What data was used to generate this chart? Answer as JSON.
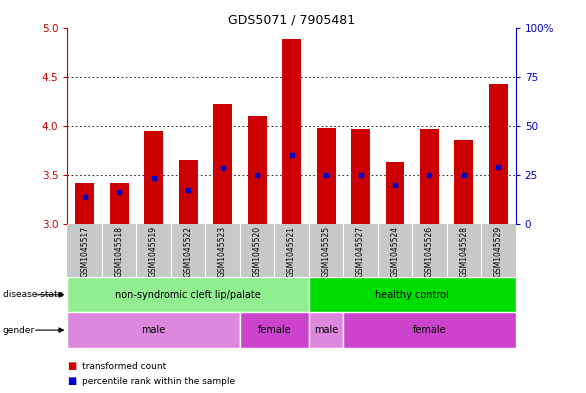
{
  "title": "GDS5071 / 7905481",
  "samples": [
    "GSM1045517",
    "GSM1045518",
    "GSM1045519",
    "GSM1045522",
    "GSM1045523",
    "GSM1045520",
    "GSM1045521",
    "GSM1045525",
    "GSM1045527",
    "GSM1045524",
    "GSM1045526",
    "GSM1045528",
    "GSM1045529"
  ],
  "bar_heights": [
    3.42,
    3.42,
    3.95,
    3.65,
    4.22,
    4.1,
    4.88,
    3.98,
    3.97,
    3.63,
    3.97,
    3.85,
    4.42
  ],
  "blue_dot_y": [
    3.27,
    3.33,
    3.47,
    3.35,
    3.57,
    3.5,
    3.7,
    3.5,
    3.5,
    3.4,
    3.5,
    3.5,
    3.58
  ],
  "bar_base": 3.0,
  "ylim": [
    3.0,
    5.0
  ],
  "yticks": [
    3.0,
    3.5,
    4.0,
    4.5,
    5.0
  ],
  "right_yticks": [
    0,
    25,
    50,
    75,
    100
  ],
  "bar_color": "#cc0000",
  "dot_color": "#0000cc",
  "disease_state_groups": [
    {
      "label": "non-syndromic cleft lip/palate",
      "start": 0,
      "end": 7,
      "color": "#90ee90"
    },
    {
      "label": "healthy control",
      "start": 7,
      "end": 13,
      "color": "#00dd00"
    }
  ],
  "gender_groups": [
    {
      "label": "male",
      "start": 0,
      "end": 5,
      "color": "#dd88dd"
    },
    {
      "label": "female",
      "start": 5,
      "end": 7,
      "color": "#cc44cc"
    },
    {
      "label": "male",
      "start": 7,
      "end": 8,
      "color": "#dd88dd"
    },
    {
      "label": "female",
      "start": 8,
      "end": 13,
      "color": "#cc44cc"
    }
  ],
  "bar_width": 0.55,
  "title_fontsize": 9,
  "sample_bg_color": "#c8c8c8",
  "left_tick_color": "#cc0000",
  "right_tick_color": "#0000cc",
  "grid_yticks": [
    3.5,
    4.0,
    4.5
  ]
}
